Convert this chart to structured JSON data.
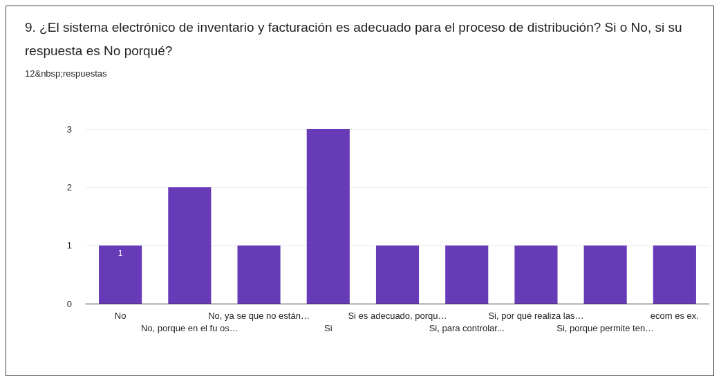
{
  "chart_data": {
    "type": "bar",
    "title": "9. ¿El sistema electrónico de inventario y facturación es adecuado para el proceso de distribución? Si o No, si su respuesta es No porqué?",
    "subtitle": "12&nbsp;respuestas",
    "categories": [
      "No",
      "No, porque en el fu os…",
      "No, ya se que no están…",
      "Si",
      "Si es adecuado, porqu…",
      "Si, para controlar...",
      "Si, por qué realiza las…",
      "Si, porque permite ten…",
      "ecom es ex."
    ],
    "values": [
      1,
      2,
      1,
      3,
      1,
      1,
      1,
      1,
      1
    ],
    "value_labels": [
      "1",
      null,
      null,
      null,
      null,
      null,
      null,
      null,
      null
    ],
    "color": "#673ab7",
    "ylim": [
      0,
      3
    ],
    "yticks": [
      0,
      1,
      2,
      3
    ],
    "grid": "y"
  }
}
